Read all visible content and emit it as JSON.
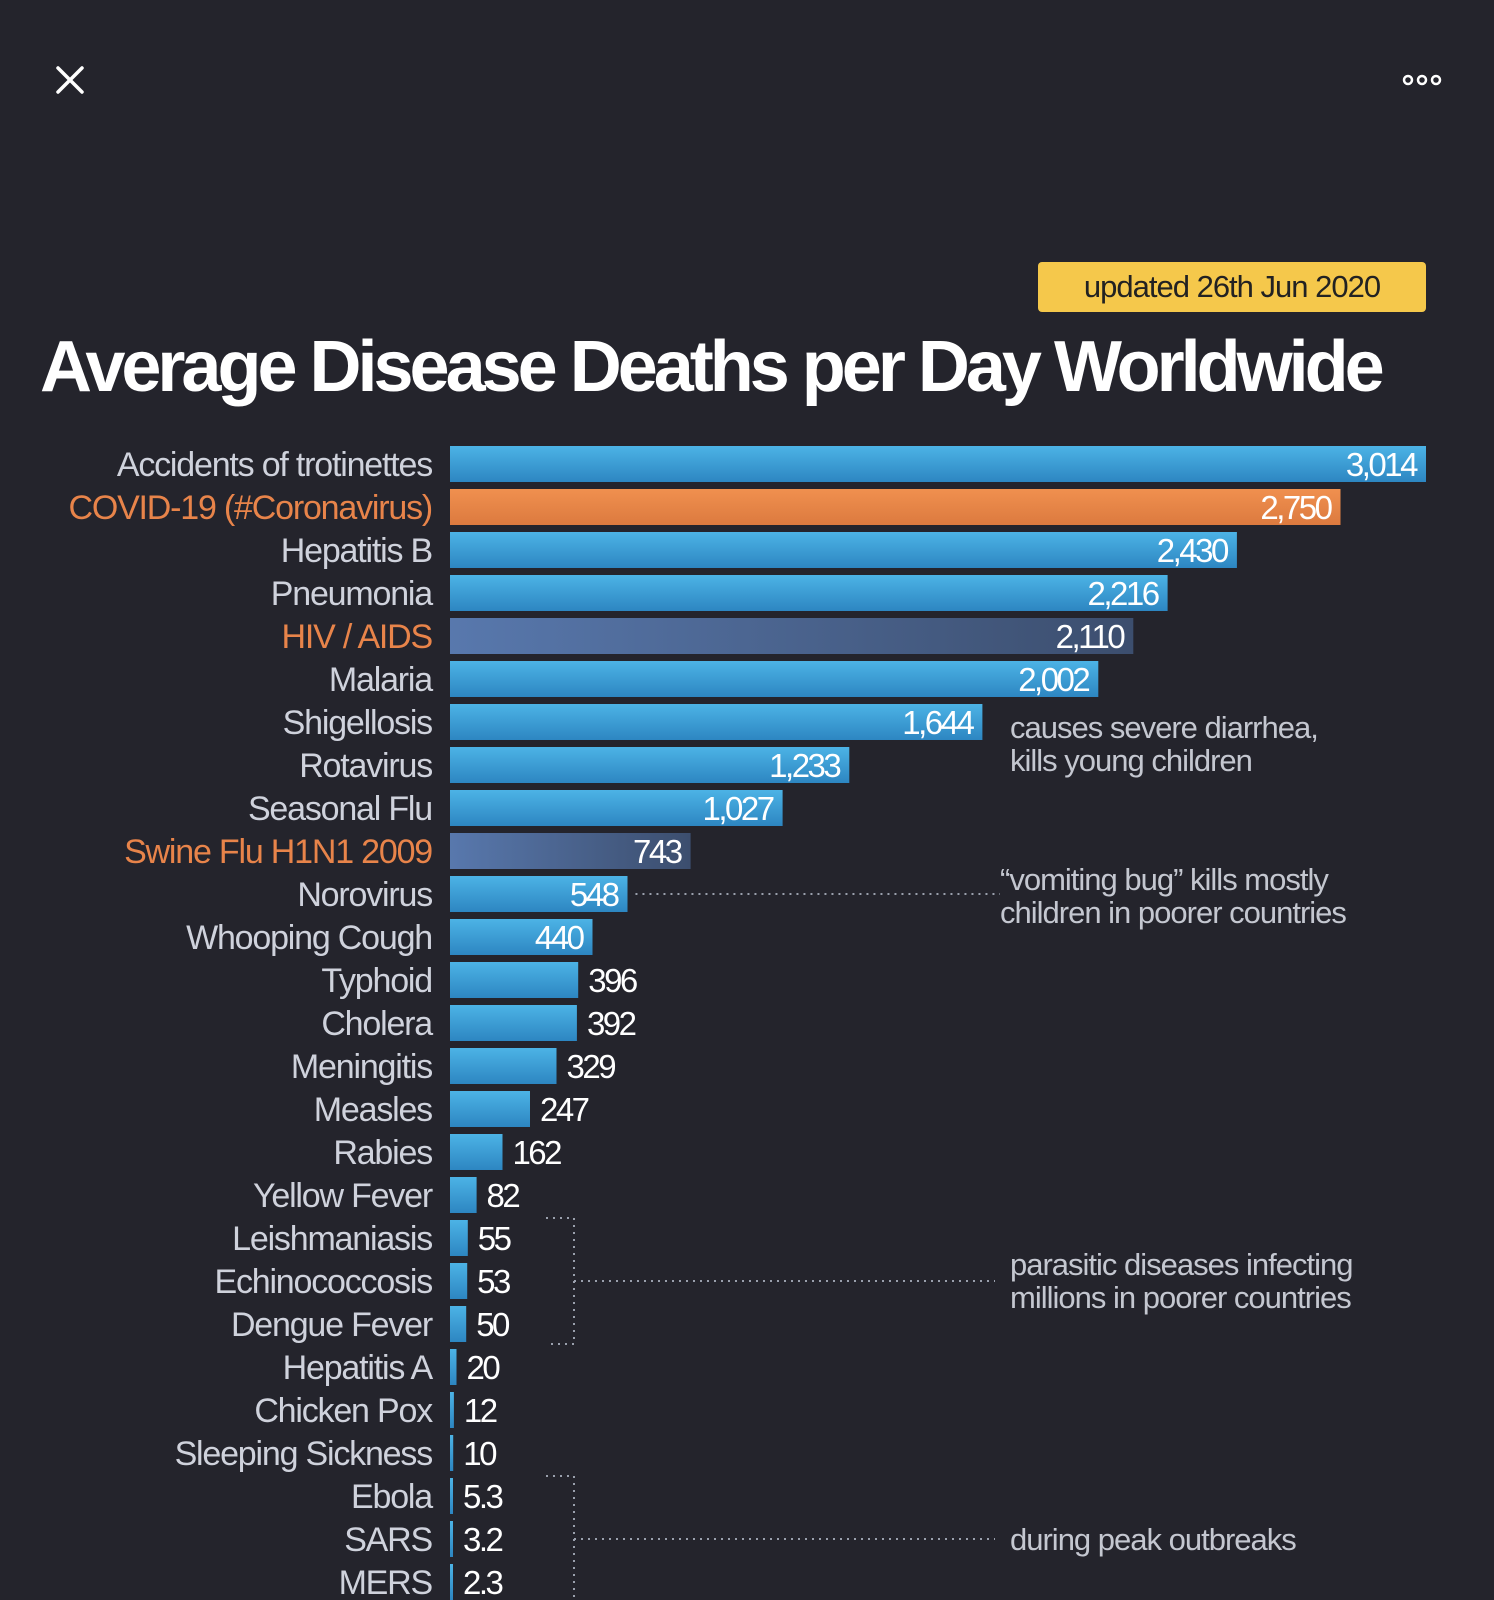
{
  "ui": {
    "close_icon": "close-icon",
    "more_icon": "more-horizontal-icon"
  },
  "colors": {
    "background": "#24242c",
    "bar_blue": "#3a9ed6",
    "bar_orange": "#e8844a",
    "bar_dark": "#4a6795",
    "label_default": "#cfd2dc",
    "label_highlight": "#e8844a",
    "badge": "#f5c84b"
  },
  "chart_data": {
    "type": "bar",
    "orientation": "horizontal",
    "title": "Average Disease Deaths per Day Worldwide",
    "subtitle": "updated 26th Jun 2020",
    "categories": [
      "Accidents of trotinettes",
      "COVID-19 (#Coronavirus)",
      "Hepatitis B",
      "Pneumonia",
      "HIV / AIDS",
      "Malaria",
      "Shigellosis",
      "Rotavirus",
      "Seasonal Flu",
      "Swine Flu H1N1 2009",
      "Norovirus",
      "Whooping Cough",
      "Typhoid",
      "Cholera",
      "Meningitis",
      "Measles",
      "Rabies",
      "Yellow Fever",
      "Leishmaniasis",
      "Echinococcosis",
      "Dengue Fever",
      "Hepatitis A",
      "Chicken Pox",
      "Sleeping Sickness",
      "Ebola",
      "SARS",
      "MERS"
    ],
    "values": [
      3014,
      2750,
      2430,
      2216,
      2110,
      2002,
      1644,
      1233,
      1027,
      743,
      548,
      440,
      396,
      392,
      329,
      247,
      162,
      82,
      55,
      53,
      50,
      20,
      12,
      10,
      5.3,
      3.2,
      2.3
    ],
    "value_labels": [
      "3,014",
      "2,750",
      "2,430",
      "2,216",
      "2,110",
      "2,002",
      "1,644",
      "1,233",
      "1,027",
      "743",
      "548",
      "440",
      "396",
      "392",
      "329",
      "247",
      "162",
      "82",
      "55",
      "53",
      "50",
      "20",
      "12",
      "10",
      "5.3",
      "3.2",
      "2.3"
    ],
    "highlight": [
      "normal",
      "orange",
      "normal",
      "normal",
      "dark",
      "normal",
      "normal",
      "normal",
      "normal",
      "dark",
      "normal",
      "normal",
      "normal",
      "normal",
      "normal",
      "normal",
      "normal",
      "normal",
      "normal",
      "normal",
      "normal",
      "normal",
      "normal",
      "normal",
      "normal",
      "normal",
      "normal"
    ],
    "xlim": [
      0,
      3014
    ],
    "annotations": [
      {
        "lines": [
          "causes severe diarrhea,",
          "kills young children"
        ],
        "category": "Shigellosis"
      },
      {
        "lines": [
          "“vomiting bug” kills mostly",
          "children in poorer countries"
        ],
        "category": "Norovirus"
      },
      {
        "lines": [
          "parasitic diseases infecting",
          "millions in poorer countries"
        ],
        "categories": [
          "Leishmaniasis",
          "Echinococcosis",
          "Dengue Fever"
        ]
      },
      {
        "lines": [
          "during peak outbreaks"
        ],
        "categories": [
          "Ebola",
          "SARS",
          "MERS"
        ]
      }
    ]
  }
}
